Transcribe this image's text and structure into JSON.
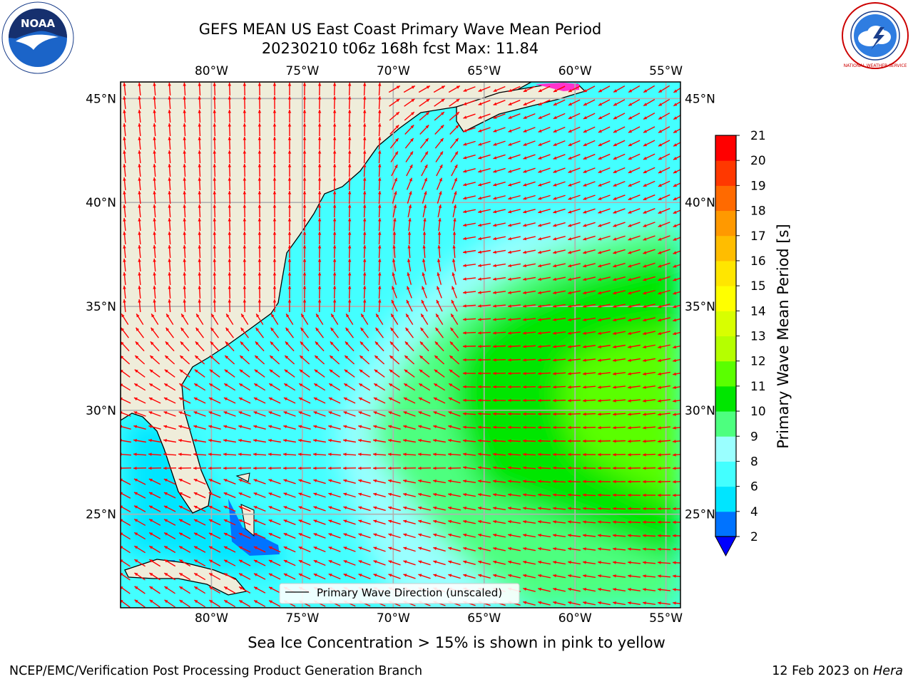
{
  "header": {
    "title_line1": "GEFS MEAN US East Coast Primary Wave Mean Period",
    "title_line2": "20230210 t06z 168h fcst   Max: 11.84"
  },
  "logos": {
    "left": {
      "name": "noaa-logo",
      "text": "NOAA"
    },
    "right": {
      "name": "nws-logo",
      "text": "NATIONAL WEATHER SERVICE"
    }
  },
  "map": {
    "lon_labels": [
      "80°W",
      "75°W",
      "70°W",
      "65°W",
      "60°W",
      "55°W"
    ],
    "lat_labels": [
      "45°N",
      "40°N",
      "35°N",
      "30°N",
      "25°N"
    ],
    "lon_values": [
      -80,
      -75,
      -70,
      -65,
      -60,
      -55
    ],
    "lat_values": [
      45,
      40,
      35,
      30,
      25
    ],
    "extent": {
      "lon_min": -85,
      "lon_max": -54.2,
      "lat_min": 20.5,
      "lat_max": 45.8
    },
    "legend_label": "Primary Wave Direction (unscaled)",
    "land_color": "#efedda",
    "arrow_color": "#ff0000"
  },
  "colorbar": {
    "label": "Primary Wave Mean Period [s]",
    "ticks": [
      "2",
      "4",
      "6",
      "8",
      "9",
      "10",
      "11",
      "12",
      "13",
      "14",
      "15",
      "16",
      "17",
      "18",
      "19",
      "20",
      "21"
    ],
    "colors": [
      "#0073ff",
      "#00e5ff",
      "#43ffff",
      "#9affff",
      "#4dff7f",
      "#00e600",
      "#5aff00",
      "#b5ff00",
      "#d8ff00",
      "#ffff00",
      "#ffe600",
      "#ffbd00",
      "#ff9900",
      "#ff6a00",
      "#ff3800",
      "#ff0000"
    ],
    "under_color": "#0000ff"
  },
  "notes": {
    "sea_ice": "Sea Ice Concentration > 15% is shown in pink to yellow"
  },
  "footer": {
    "left": "NCEP/EMC/Verification Post Processing Product Generation Branch",
    "date": "12 Feb 2023",
    "on": "on",
    "host": "Hera"
  }
}
